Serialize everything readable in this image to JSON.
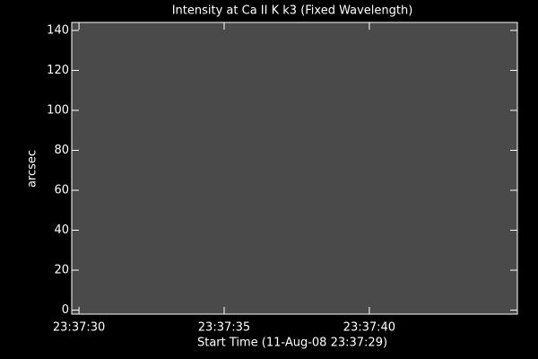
{
  "chart_data": {
    "type": "image",
    "title": "Intensity at Ca II K k3 (Fixed Wavelength)",
    "x_label": "Start Time (11-Aug-08 23:37:29)",
    "y_label": "arcsec",
    "xlim": [
      "23:37:29.75",
      "23:37:45.1"
    ],
    "xticks": [
      "23:37:30",
      "23:37:35",
      "23:37:40"
    ],
    "ylim": [
      -2,
      144
    ],
    "yticks": [
      0,
      20,
      40,
      60,
      80,
      100,
      120,
      140
    ],
    "color": "#4a4a4a"
  }
}
